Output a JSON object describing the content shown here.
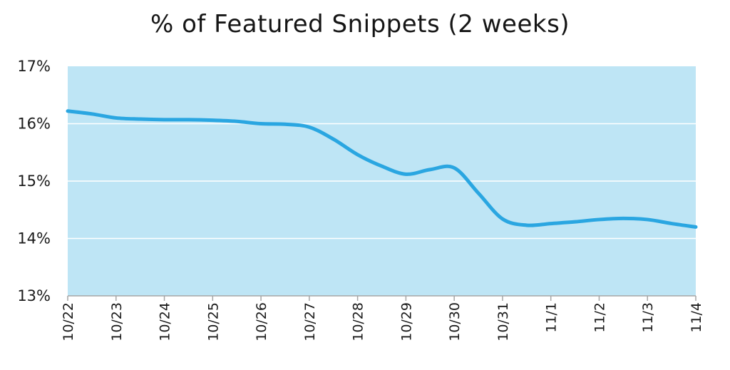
{
  "chart_data": {
    "type": "line",
    "title": "% of Featured Snippets (2 weeks)",
    "xlabel": "",
    "ylabel": "",
    "categories": [
      "10/22",
      "10/23",
      "10/24",
      "10/25",
      "10/26",
      "10/27",
      "10/28",
      "10/29",
      "10/30",
      "10/31",
      "11/1",
      "11/2",
      "11/3",
      "11/4"
    ],
    "x": [
      0,
      0.5,
      1,
      1.5,
      2,
      2.5,
      3,
      3.5,
      4,
      4.5,
      5,
      5.5,
      6,
      6.5,
      7,
      7.5,
      8,
      8.5,
      9,
      9.5,
      10,
      10.5,
      11,
      11.5,
      12,
      12.5,
      13
    ],
    "x_tick_labels_at": [
      0,
      1,
      2,
      3,
      4,
      5,
      6,
      7,
      8,
      9,
      10,
      11,
      12,
      13
    ],
    "series": [
      {
        "values": [
          16.22,
          16.17,
          16.1,
          16.08,
          16.07,
          16.07,
          16.06,
          16.04,
          16.0,
          15.99,
          15.94,
          15.73,
          15.46,
          15.26,
          15.12,
          15.2,
          15.23,
          14.79,
          14.34,
          14.23,
          14.26,
          14.29,
          14.33,
          14.35,
          14.33,
          14.26,
          14.2
        ]
      }
    ],
    "ylim": [
      13,
      17
    ],
    "yticks": [
      13,
      14,
      15,
      16,
      17
    ],
    "ytick_labels": [
      "13%",
      "14%",
      "15%",
      "16%",
      "17%"
    ],
    "grid": true,
    "legend": "none",
    "colors": {
      "plot_background": "#bee5f5",
      "line": "#2aa6e1",
      "gridline": "#ffffff",
      "axis": "#a6a6a6"
    }
  }
}
